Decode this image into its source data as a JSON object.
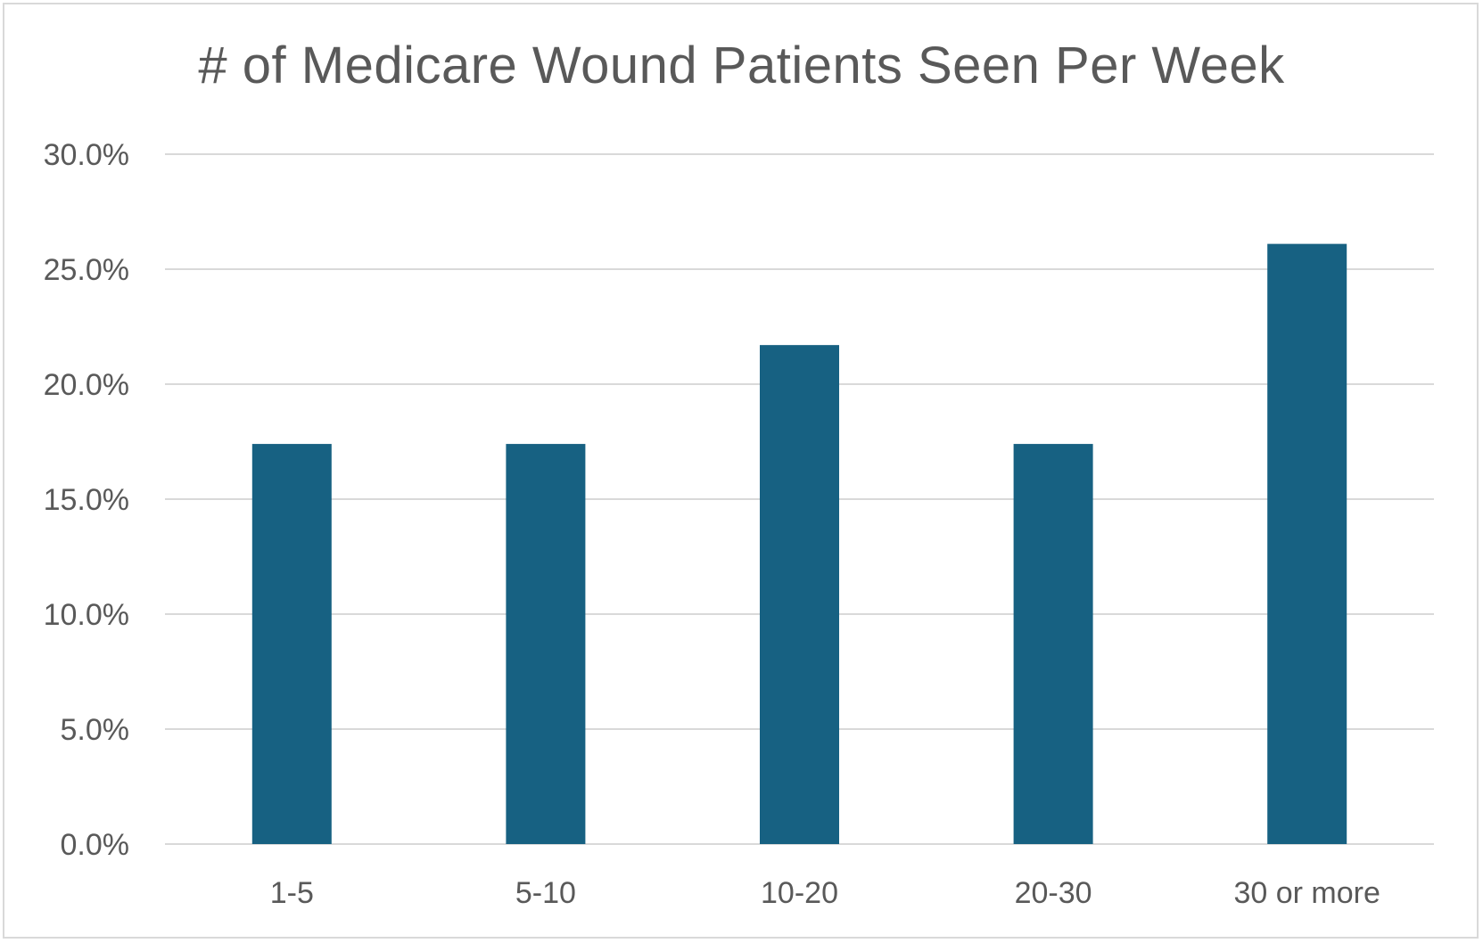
{
  "chart_data": {
    "type": "bar",
    "title": "# of Medicare Wound Patients Seen Per Week",
    "xlabel": "",
    "ylabel": "",
    "categories": [
      "1-5",
      "5-10",
      "10-20",
      "20-30",
      "30 or more"
    ],
    "values": [
      17.4,
      17.4,
      21.7,
      17.4,
      26.1
    ],
    "ylim": [
      0,
      30
    ],
    "yticks": [
      0,
      5,
      10,
      15,
      20,
      25,
      30
    ],
    "ytick_labels": [
      "0.0%",
      "5.0%",
      "10.0%",
      "15.0%",
      "20.0%",
      "25.0%",
      "30.0%"
    ],
    "grid": true,
    "legend": "none",
    "bar_color": "#176182",
    "grid_color": "#d9d9d9",
    "text_color": "#595959"
  }
}
